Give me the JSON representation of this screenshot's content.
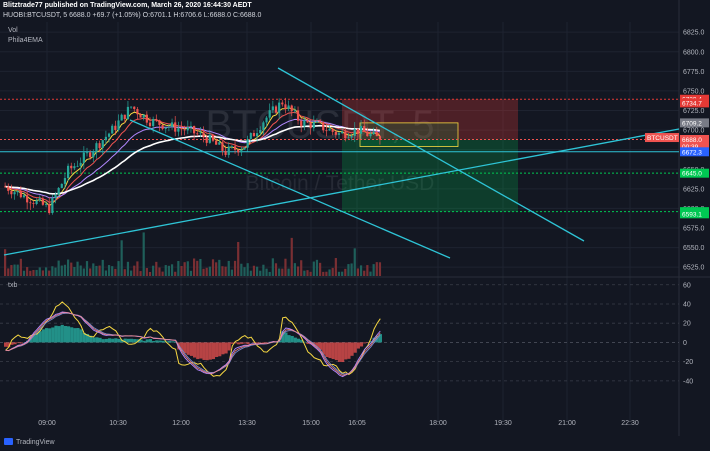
{
  "header": {
    "line1": "Blitztrade77 published on TradingView.com, March 26, 2020 16:44:30 AEDT",
    "line2": "HUOBI:BTCUSDT, 5  6688.0  +69.7 (+1.05%)  O:6701.1  H:6706.6  L:6688.0  C:6688.0"
  },
  "indicators": {
    "vol": "Vol",
    "ema": "Phila4EMA",
    "osc": "txb"
  },
  "watermark": {
    "symbol": "BTCUSDT, 5",
    "name": "Bitcoin / Tether USD"
  },
  "footer": {
    "logo": "TradingView"
  },
  "colors": {
    "background": "#131722",
    "grid": "#1e2330",
    "up": "#26a69a",
    "down": "#ef5350",
    "trendline": "#2ec4d6",
    "target": "#00c853",
    "stop": "#e53935"
  },
  "chart_data": {
    "type": "candlestick",
    "symbol": "HUOBI:BTCUSDT",
    "interval": "5",
    "last_price": 6688.0,
    "x_ticks": [
      "09:00",
      "10:30",
      "12:00",
      "13:30",
      "15:00",
      "16:05",
      "18:00",
      "19:30",
      "21:00",
      "22:30"
    ],
    "y_ticks": [
      6825.0,
      6800.0,
      6775.0,
      6750.0,
      6725.0,
      6700.0,
      6675.0,
      6650.0,
      6625.0,
      6600.0,
      6575.0,
      6550.0,
      6525.0
    ],
    "ylim": [
      6515,
      6838
    ],
    "price_labels": [
      {
        "text": "6739.4",
        "value": 6739.4,
        "color": "#e53935"
      },
      {
        "text": "6734.7",
        "value": 6734.7,
        "color": "#e53935"
      },
      {
        "text": "6709.2",
        "value": 6709.2,
        "color": "#787b86"
      },
      {
        "text": "BTCUSDT",
        "value": 6690.5,
        "color": "#ef5350"
      },
      {
        "text": "6688.0",
        "value": 6688.0,
        "color": "#ef5350"
      },
      {
        "text": "00:39",
        "value": 6679.0,
        "color": "#ef5350"
      },
      {
        "text": "6672.3",
        "value": 6672.3,
        "color": "#2962ff"
      },
      {
        "text": "6645.0",
        "value": 6645.0,
        "color": "#00c853"
      },
      {
        "text": "6595.9",
        "value": 6595.9,
        "color": "#00c853"
      },
      {
        "text": "6593.1",
        "value": 6593.1,
        "color": "#00c853"
      }
    ],
    "h_levels": [
      {
        "value": 6739.4,
        "color": "#e53935",
        "style": "dotted"
      },
      {
        "value": 6688.0,
        "color": "#ef5350",
        "style": "dotted"
      },
      {
        "value": 6672.3,
        "color": "#2ec4d6",
        "style": "solid"
      },
      {
        "value": 6645.0,
        "color": "#00c853",
        "style": "dotted"
      },
      {
        "value": 6595.9,
        "color": "#00c853",
        "style": "dotted"
      }
    ],
    "candle_count": 120,
    "osc_y_ticks": [
      60,
      40,
      20,
      0,
      -20,
      -40
    ],
    "osc_ylim": [
      -62,
      66
    ]
  }
}
